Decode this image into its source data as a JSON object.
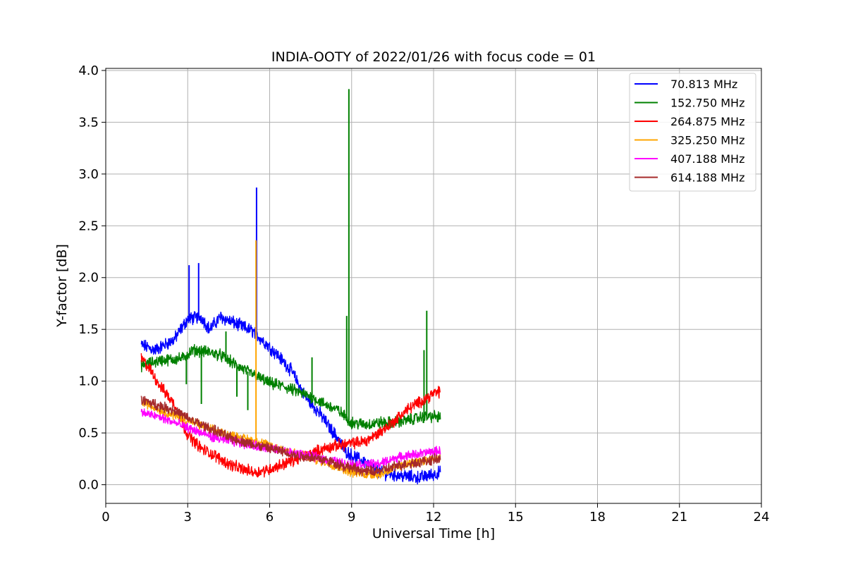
{
  "chart_data": {
    "type": "line",
    "title": "INDIA-OOTY of 2022/01/26 with focus code = 01",
    "xlabel": "Universal Time [h]",
    "ylabel": "Y-factor [dB]",
    "xlim": [
      0,
      24
    ],
    "ylim": [
      -0.18,
      4.02
    ],
    "xticks": [
      0,
      3,
      6,
      9,
      12,
      15,
      18,
      21,
      24
    ],
    "xtick_labels": [
      "0",
      "3",
      "6",
      "9",
      "12",
      "15",
      "18",
      "21",
      "24"
    ],
    "yticks": [
      0.0,
      0.5,
      1.0,
      1.5,
      2.0,
      2.5,
      3.0,
      3.5,
      4.0
    ],
    "ytick_labels": [
      "0.0",
      "0.5",
      "1.0",
      "1.5",
      "2.0",
      "2.5",
      "3.0",
      "3.5",
      "4.0"
    ],
    "grid": true,
    "legend_position": "top-right",
    "series": [
      {
        "name": "70.813 MHz",
        "color": "#0000ff",
        "noise": 0.05,
        "points": [
          [
            1.3,
            1.35
          ],
          [
            1.8,
            1.3
          ],
          [
            2.5,
            1.4
          ],
          [
            3.0,
            1.6
          ],
          [
            3.5,
            1.62
          ],
          [
            3.8,
            1.5
          ],
          [
            4.2,
            1.62
          ],
          [
            4.8,
            1.55
          ],
          [
            5.4,
            1.48
          ],
          [
            5.8,
            1.38
          ],
          [
            6.3,
            1.25
          ],
          [
            6.8,
            1.1
          ],
          [
            7.3,
            0.85
          ],
          [
            7.8,
            0.7
          ],
          [
            8.2,
            0.55
          ],
          [
            8.5,
            0.45
          ],
          [
            8.7,
            0.35
          ],
          [
            9.0,
            0.28
          ],
          [
            9.5,
            0.22
          ],
          [
            10.0,
            0.12
          ],
          [
            10.5,
            0.1
          ],
          [
            11.0,
            0.08
          ],
          [
            11.5,
            0.07
          ],
          [
            12.0,
            0.1
          ],
          [
            12.25,
            0.12
          ]
        ],
        "spikes": [
          [
            3.05,
            2.12
          ],
          [
            3.4,
            2.14
          ],
          [
            5.52,
            2.87
          ]
        ]
      },
      {
        "name": "152.750 MHz",
        "color": "#008000",
        "noise": 0.045,
        "points": [
          [
            1.3,
            1.15
          ],
          [
            2.0,
            1.2
          ],
          [
            2.8,
            1.22
          ],
          [
            3.2,
            1.3
          ],
          [
            3.8,
            1.28
          ],
          [
            4.2,
            1.25
          ],
          [
            4.8,
            1.15
          ],
          [
            5.5,
            1.05
          ],
          [
            6.0,
            0.98
          ],
          [
            6.5,
            0.95
          ],
          [
            7.0,
            0.9
          ],
          [
            7.5,
            0.85
          ],
          [
            8.0,
            0.78
          ],
          [
            8.5,
            0.72
          ],
          [
            9.0,
            0.6
          ],
          [
            9.5,
            0.58
          ],
          [
            10.0,
            0.6
          ],
          [
            10.5,
            0.6
          ],
          [
            11.0,
            0.62
          ],
          [
            11.5,
            0.65
          ],
          [
            12.0,
            0.66
          ],
          [
            12.25,
            0.65
          ]
        ],
        "spikes": [
          [
            2.95,
            0.97
          ],
          [
            3.5,
            0.78
          ],
          [
            4.4,
            1.48
          ],
          [
            4.8,
            0.85
          ],
          [
            5.2,
            0.72
          ],
          [
            7.55,
            1.23
          ],
          [
            8.82,
            1.63
          ],
          [
            8.9,
            3.82
          ],
          [
            11.65,
            1.3
          ],
          [
            11.75,
            1.68
          ]
        ]
      },
      {
        "name": "264.875 MHz",
        "color": "#ff0000",
        "noise": 0.045,
        "points": [
          [
            1.3,
            1.22
          ],
          [
            1.6,
            1.12
          ],
          [
            2.0,
            0.95
          ],
          [
            2.5,
            0.78
          ],
          [
            3.0,
            0.48
          ],
          [
            3.5,
            0.35
          ],
          [
            4.0,
            0.28
          ],
          [
            4.5,
            0.2
          ],
          [
            5.0,
            0.15
          ],
          [
            5.5,
            0.12
          ],
          [
            6.0,
            0.15
          ],
          [
            6.5,
            0.2
          ],
          [
            7.0,
            0.25
          ],
          [
            7.5,
            0.3
          ],
          [
            8.0,
            0.35
          ],
          [
            8.5,
            0.38
          ],
          [
            9.0,
            0.4
          ],
          [
            9.5,
            0.42
          ],
          [
            10.0,
            0.5
          ],
          [
            10.5,
            0.6
          ],
          [
            11.0,
            0.72
          ],
          [
            11.5,
            0.8
          ],
          [
            12.0,
            0.88
          ],
          [
            12.25,
            0.9
          ]
        ],
        "spikes": []
      },
      {
        "name": "325.250 MHz",
        "color": "#ffa500",
        "noise": 0.035,
        "points": [
          [
            1.3,
            0.8
          ],
          [
            2.0,
            0.72
          ],
          [
            3.0,
            0.62
          ],
          [
            4.0,
            0.52
          ],
          [
            5.0,
            0.45
          ],
          [
            5.5,
            0.42
          ],
          [
            6.0,
            0.38
          ],
          [
            7.0,
            0.3
          ],
          [
            8.0,
            0.22
          ],
          [
            9.0,
            0.12
          ],
          [
            9.5,
            0.1
          ],
          [
            10.0,
            0.1
          ],
          [
            10.5,
            0.15
          ],
          [
            11.0,
            0.2
          ],
          [
            11.5,
            0.22
          ],
          [
            12.0,
            0.25
          ],
          [
            12.25,
            0.27
          ]
        ],
        "spikes": [
          [
            5.5,
            2.36
          ]
        ]
      },
      {
        "name": "407.188 MHz",
        "color": "#ff00ff",
        "noise": 0.035,
        "points": [
          [
            1.3,
            0.7
          ],
          [
            2.0,
            0.65
          ],
          [
            3.0,
            0.55
          ],
          [
            4.0,
            0.45
          ],
          [
            5.0,
            0.4
          ],
          [
            6.0,
            0.35
          ],
          [
            7.0,
            0.3
          ],
          [
            8.0,
            0.25
          ],
          [
            8.8,
            0.2
          ],
          [
            9.5,
            0.2
          ],
          [
            10.0,
            0.2
          ],
          [
            10.5,
            0.25
          ],
          [
            11.0,
            0.28
          ],
          [
            11.5,
            0.3
          ],
          [
            12.0,
            0.32
          ],
          [
            12.25,
            0.33
          ]
        ],
        "spikes": []
      },
      {
        "name": "614.188 MHz",
        "color": "#a52a2a",
        "noise": 0.04,
        "points": [
          [
            1.3,
            0.82
          ],
          [
            2.0,
            0.76
          ],
          [
            2.5,
            0.72
          ],
          [
            3.0,
            0.64
          ],
          [
            3.5,
            0.58
          ],
          [
            4.0,
            0.52
          ],
          [
            4.5,
            0.46
          ],
          [
            5.0,
            0.42
          ],
          [
            5.5,
            0.38
          ],
          [
            6.0,
            0.35
          ],
          [
            6.5,
            0.32
          ],
          [
            7.0,
            0.28
          ],
          [
            7.5,
            0.27
          ],
          [
            8.0,
            0.24
          ],
          [
            8.5,
            0.2
          ],
          [
            9.0,
            0.16
          ],
          [
            9.5,
            0.13
          ],
          [
            10.0,
            0.13
          ],
          [
            10.5,
            0.17
          ],
          [
            11.0,
            0.2
          ],
          [
            11.5,
            0.22
          ],
          [
            12.0,
            0.24
          ],
          [
            12.25,
            0.25
          ]
        ],
        "spikes": []
      }
    ]
  }
}
